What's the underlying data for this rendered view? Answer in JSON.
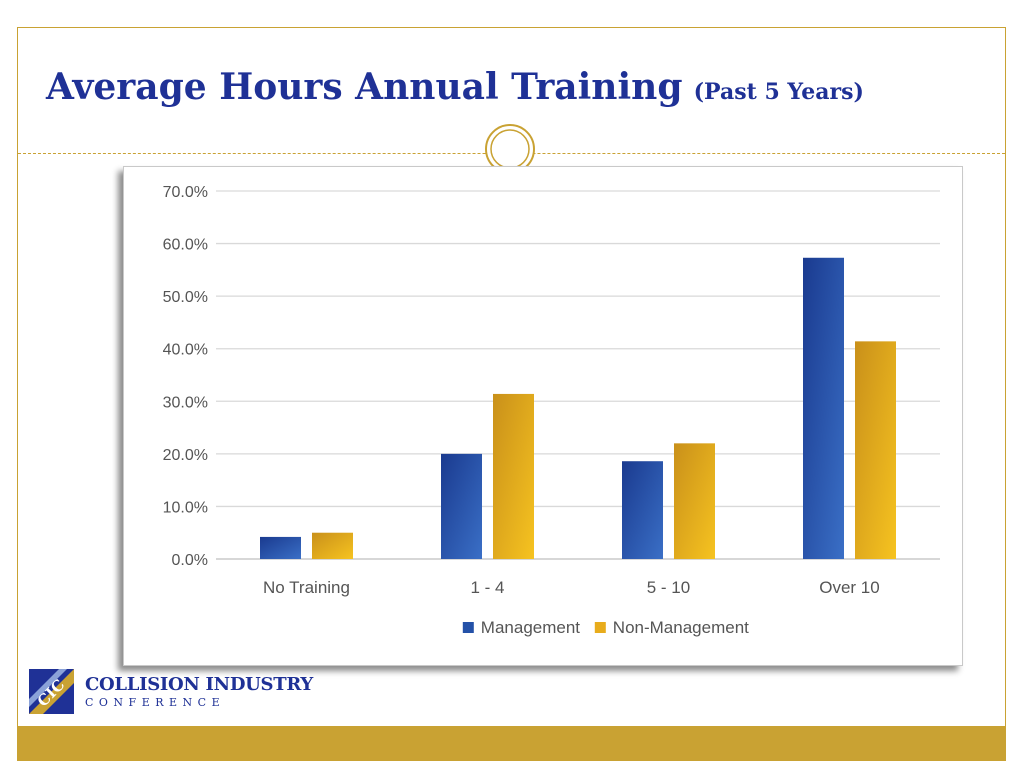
{
  "slide": {
    "title_main": "Average Hours Annual Training",
    "title_sub": "(Past 5 Years)"
  },
  "logo": {
    "line1": "COLLISION INDUSTRY",
    "line2": "CONFERENCE",
    "mark_text": "CIC"
  },
  "colors": {
    "accent_gold": "#c9a233",
    "title_blue": "#1f3196",
    "management": "#2451a8",
    "non_management": "#e8ac1c"
  },
  "chart_data": {
    "type": "bar",
    "categories": [
      "No Training",
      "1 - 4",
      "5 - 10",
      "Over 10"
    ],
    "series": [
      {
        "name": "Management",
        "values": [
          4.2,
          20.0,
          18.6,
          57.3
        ]
      },
      {
        "name": "Non-Management",
        "values": [
          5.0,
          31.4,
          22.0,
          41.4
        ]
      }
    ],
    "yticks": [
      "0.0%",
      "10.0%",
      "20.0%",
      "30.0%",
      "40.0%",
      "50.0%",
      "60.0%",
      "70.0%"
    ],
    "ylim": [
      0,
      70
    ],
    "grid": true,
    "legend": "bottom"
  }
}
